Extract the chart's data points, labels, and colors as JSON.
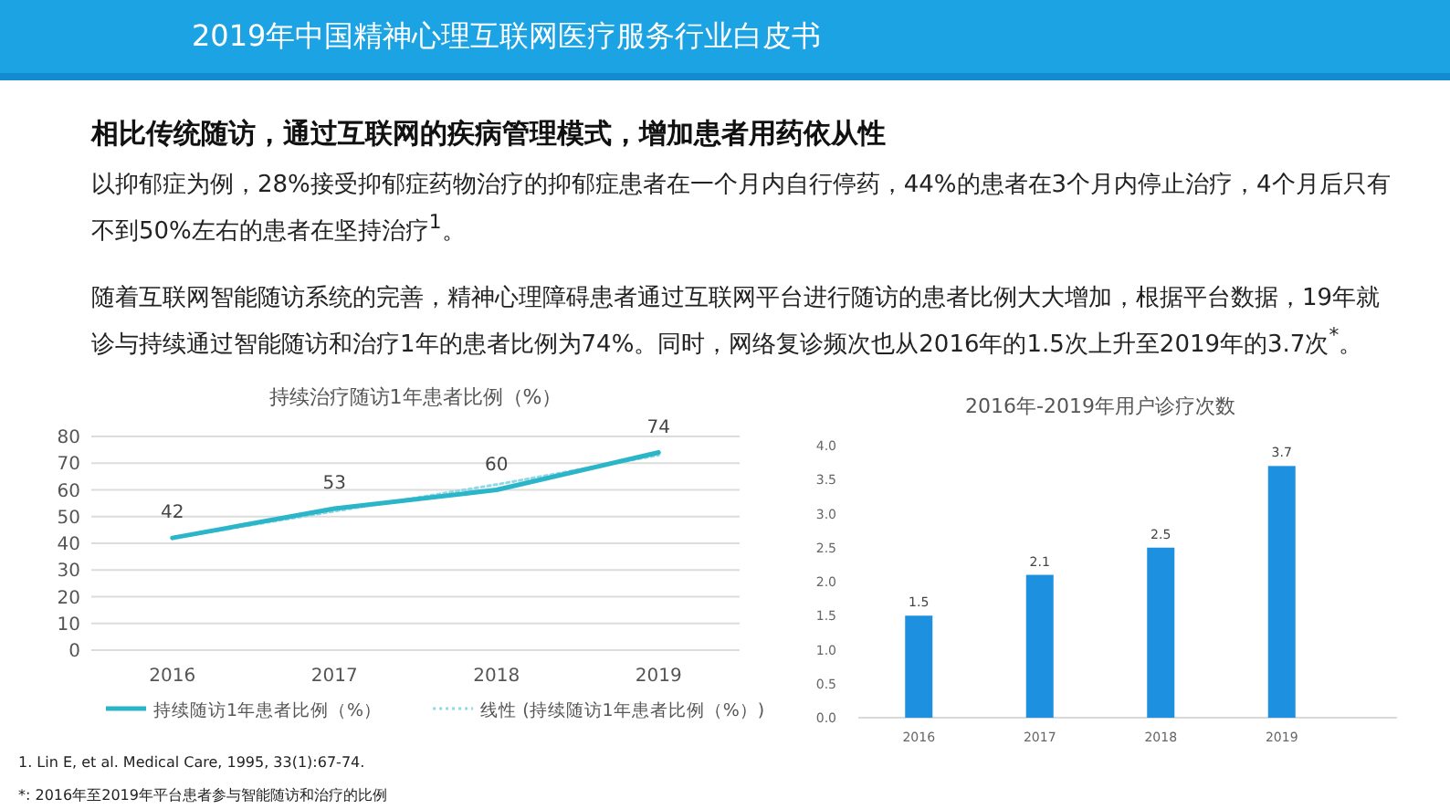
{
  "chart_data": [
    {
      "type": "other",
      "title": "2019年中国精神心理互联网医疗服务行业白皮书",
      "subtitle": "相比传统随访，通过互联网的疾病管理模式，增加患者用药依从性",
      "annotations": [
        "以抑郁症为例，28%接受抑郁症药物治疗的抑郁症患者在一个月内自行停药，44%的患者在3个月内停止治疗，4个月后只有不到50%左右的患者在坚持治疗$^{1}$。",
        "随着互联网智能随访系统的完善，精神心理障碍患者通过互联网平台进行随访的患者比例大大增加，根据平台数据，19年就诊与持续通过智能随访和治疗1年的患者比例为74%。同时，网络复诊频次也从2016年的1.5次上升至2019年的3.7次$^{*}$。",
        "1.    Lin E, et al. Medical Care, 1995, 33(1):67-74.",
        "*: 2016年至2019年平台患者参与智能随访和治疗的比例"
      ]
    },
    {
      "type": "line",
      "title": "持续治疗随访1年患者比例（%）",
      "categories": [
        "2016",
        "2017",
        "2018",
        "2019"
      ],
      "series": [
        {
          "name": "持续随访1年患者比例（%）",
          "color": "#2bb5c9",
          "values": [
            42,
            53,
            60,
            74
          ],
          "value_labels": [
            "42",
            "53",
            "60",
            "74"
          ]
        },
        {
          "name": "线性 (持续随访1年患者比例（%）)",
          "color": "#8fd8e4",
          "values": [
            42,
            52,
            62,
            73
          ],
          "line_style": "dotted"
        }
      ],
      "ylim": [
        0,
        80
      ],
      "yticks": [
        0,
        10,
        20,
        30,
        40,
        50,
        60,
        70,
        80
      ],
      "grid": "y",
      "legend": "bottom"
    },
    {
      "type": "bar",
      "title": "2016年-2019年用户诊疗次数",
      "categories": [
        "2016",
        "2017",
        "2018",
        "2019"
      ],
      "values": [
        1.5,
        2.1,
        2.5,
        3.7
      ],
      "color": "#1e90e0",
      "ylim": [
        0,
        4
      ],
      "yticks": [
        {
          "value": 0,
          "label": "0.0"
        },
        {
          "value": 0.5,
          "label": "0.5"
        },
        {
          "value": 1,
          "label": "1.0"
        },
        {
          "value": 1.5,
          "label": "1.5"
        },
        {
          "value": 2,
          "label": "2.0"
        },
        {
          "value": 2.5,
          "label": "2.5"
        },
        {
          "value": 3,
          "label": "3.0"
        },
        {
          "value": 3.5,
          "label": "3.5"
        },
        {
          "value": 4,
          "label": "4.0"
        }
      ],
      "data_labels": true
    }
  ]
}
